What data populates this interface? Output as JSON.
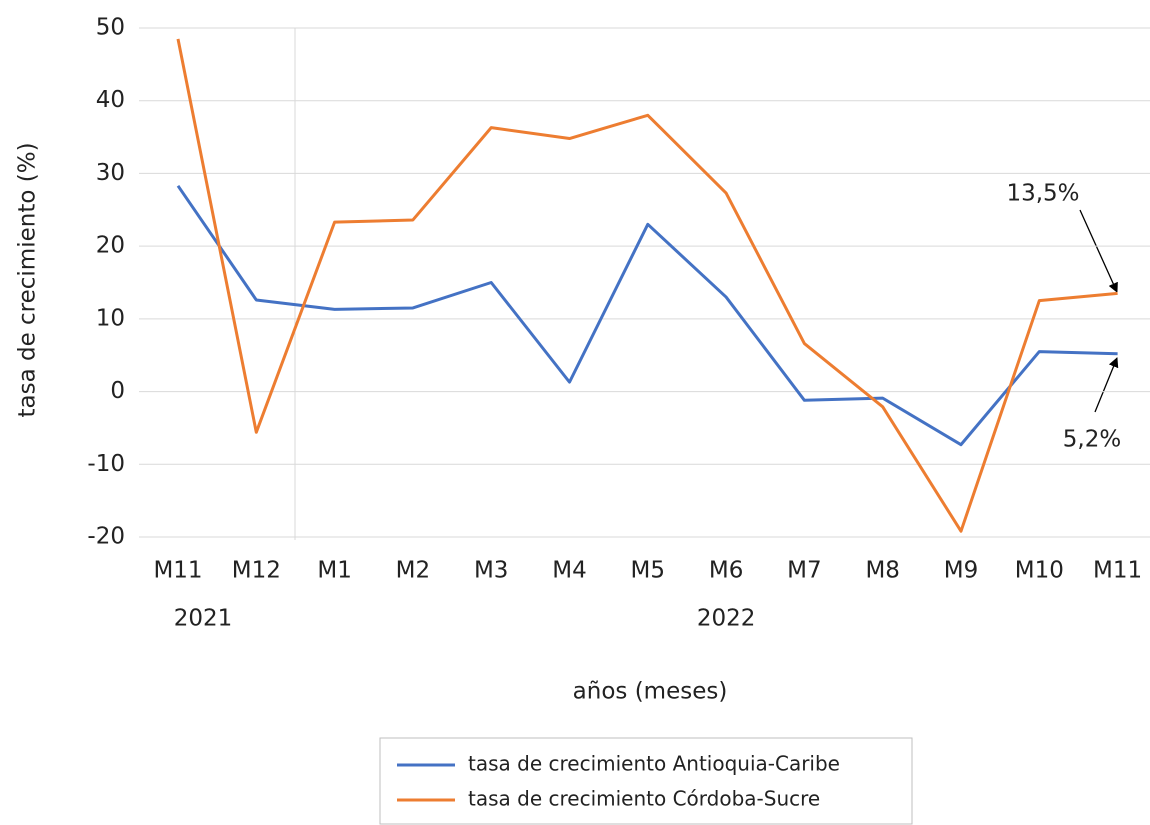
{
  "chart_data": {
    "type": "line",
    "categories": [
      "M11",
      "M12",
      "M1",
      "M2",
      "M3",
      "M4",
      "M5",
      "M6",
      "M7",
      "M8",
      "M9",
      "M10",
      "M11"
    ],
    "x_groups": [
      {
        "label": "2021",
        "count": 2
      },
      {
        "label": "2022",
        "count": 11
      }
    ],
    "series": [
      {
        "name": "tasa de crecimiento Antioquia-Caribe",
        "color": "#4472c4",
        "values": [
          28.3,
          12.6,
          11.3,
          11.5,
          15.0,
          1.3,
          23.0,
          13.0,
          -1.2,
          -0.9,
          -7.3,
          5.5,
          5.2
        ]
      },
      {
        "name": "tasa de crecimiento Córdoba-Sucre",
        "color": "#ed7d31",
        "values": [
          48.5,
          -5.6,
          23.3,
          23.6,
          36.3,
          34.8,
          38.0,
          27.3,
          6.6,
          -2.1,
          -19.2,
          12.5,
          13.5
        ]
      }
    ],
    "ylim": [
      -20,
      50
    ],
    "yticks": [
      -20,
      -10,
      0,
      10,
      20,
      30,
      40,
      50
    ],
    "xlabel": "años (meses)",
    "ylabel": "tasa de crecimiento (%)",
    "annotations": [
      "13,5%",
      "5,2%"
    ],
    "grid": true
  }
}
